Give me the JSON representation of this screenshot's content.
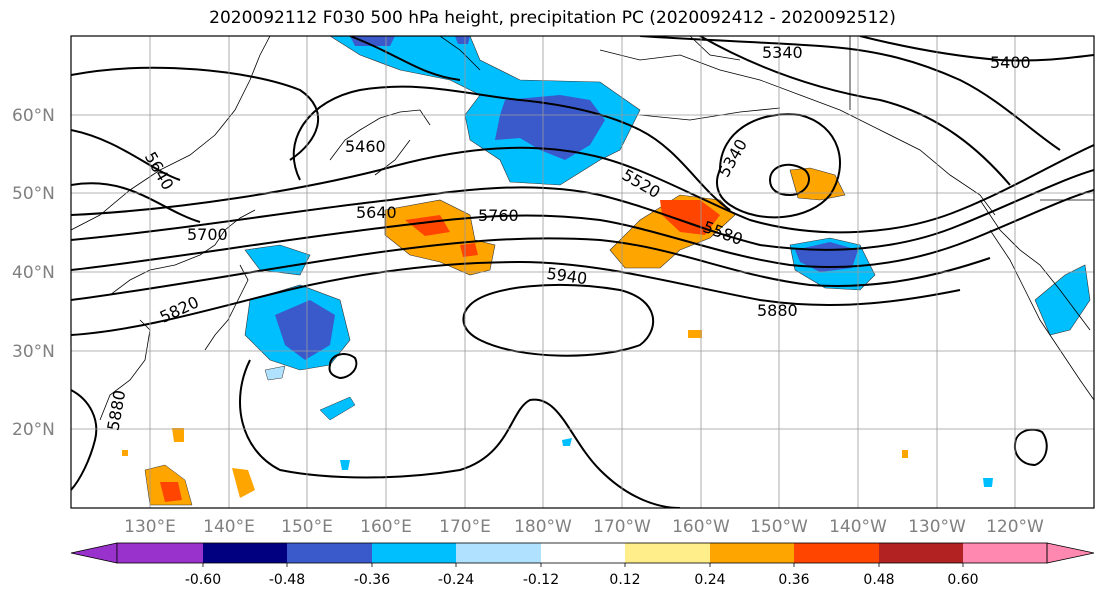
{
  "title": "2020092112 F030 500 hPa height, precipitation PC (2020092412 - 2020092512)",
  "lat_labels": [
    "60°N",
    "50°N",
    "40°N",
    "30°N",
    "20°N"
  ],
  "lon_labels": [
    "130°E",
    "140°E",
    "150°E",
    "160°E",
    "170°E",
    "180°W",
    "170°W",
    "160°W",
    "150°W",
    "140°W",
    "130°W",
    "120°W"
  ],
  "contour_labels": [
    "5340",
    "5400",
    "5460",
    "5340",
    "5640",
    "5520",
    "5640",
    "5760",
    "5580",
    "5700",
    "5940",
    "5880",
    "5820",
    "5880"
  ],
  "colorbar": {
    "colors": [
      "#9932cc",
      "#000080",
      "#3a5acc",
      "#00bfff",
      "#b0e2ff",
      "#ffffff",
      "#ffee8a",
      "#ffa500",
      "#ff4500",
      "#b22222",
      "#ff88b0"
    ],
    "labels": [
      "-0.60",
      "-0.48",
      "-0.36",
      "-0.24",
      "-0.12",
      "0.12",
      "0.24",
      "0.36",
      "0.48",
      "0.60"
    ]
  }
}
